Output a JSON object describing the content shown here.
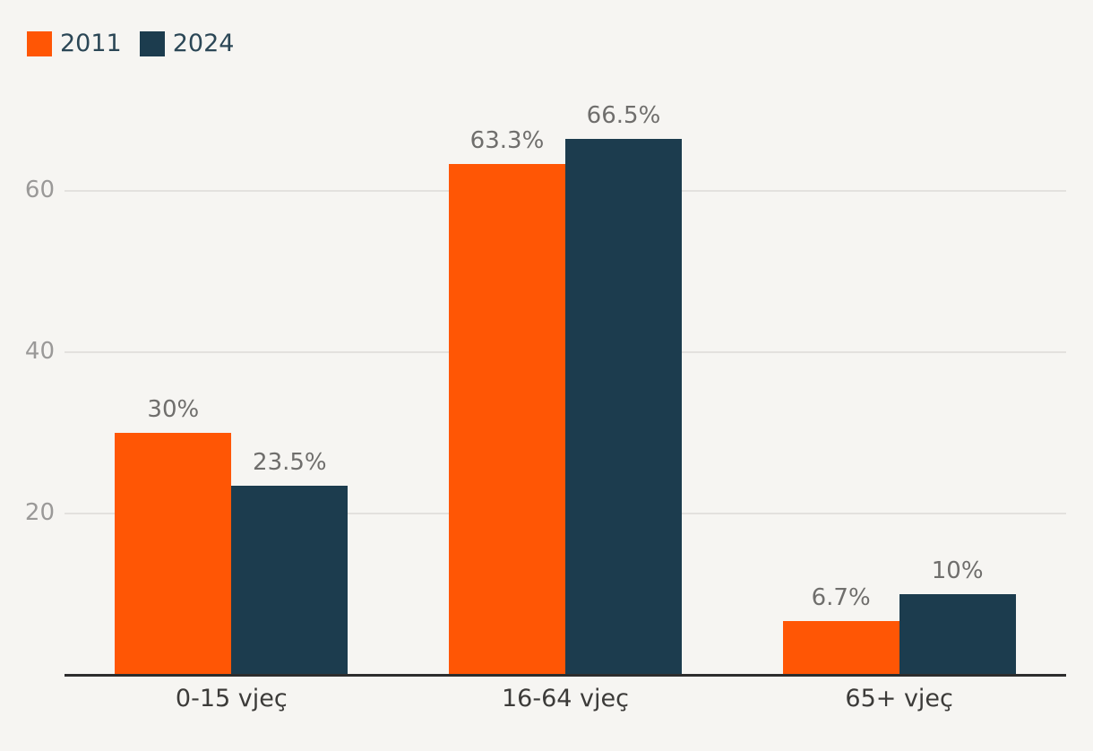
{
  "chart_data": {
    "type": "bar",
    "title": "",
    "xlabel": "",
    "ylabel": "",
    "categories": [
      "0-15 vjeç",
      "16-64 vjeç",
      "65+ vjeç"
    ],
    "series": [
      {
        "name": "2011",
        "color": "#ff5605",
        "values": [
          30,
          63.3,
          6.7
        ],
        "value_labels": [
          "30%",
          "63.3%",
          "6.7%"
        ]
      },
      {
        "name": "2024",
        "color": "#1c3c4e",
        "values": [
          23.5,
          66.5,
          10
        ],
        "value_labels": [
          "23.5%",
          "66.5%",
          "10%"
        ]
      }
    ],
    "yticks": [
      20,
      40,
      60
    ],
    "ylim": [
      0,
      70
    ],
    "grid": true,
    "legend_position": "top-left"
  },
  "colors": {
    "background": "#f6f5f2",
    "gridline": "#e3e1de",
    "axis_line": "#2d2d2d",
    "tick_label": "#9a9998",
    "data_label": "#6f6e6c",
    "category_label": "#3c3b39",
    "legend_label": "#2b4756"
  }
}
